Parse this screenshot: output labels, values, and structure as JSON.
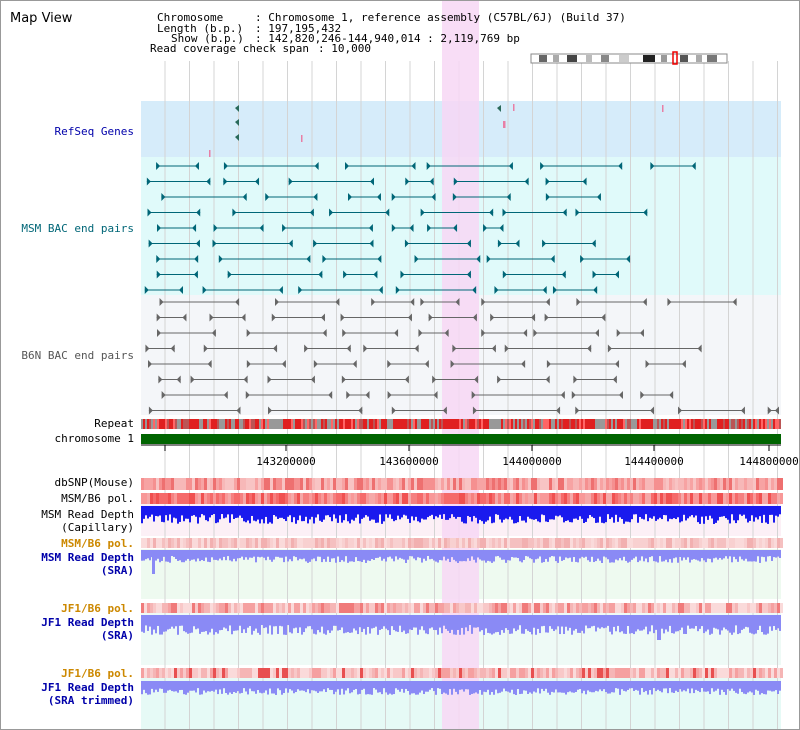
{
  "view_title": "Map View",
  "header": {
    "chromosome_key": "Chromosome",
    "chromosome_val": ": Chromosome 1, reference assembly (C57BL/6J) (Build 37)",
    "length_key": "Length (b.p.)",
    "length_val": ": 197,195,432",
    "show_key": "Show (b.p.)",
    "show_val": ": 142,820,246-144,940,014 : 2,119,769 bp",
    "coverage_key": "Read coverage check span",
    "coverage_val": ": 10,000"
  },
  "tracks": {
    "refseq": "RefSeq Genes",
    "msm_bac": "MSM BAC end pairs",
    "b6n_bac": "B6N BAC end pairs",
    "repeat": "Repeat",
    "chromosome": "chromosome 1",
    "dbsnp": "dbSNP(Mouse)",
    "msm_pol1": "MSM/B6 pol.",
    "msm_depth_cap_1": "MSM Read Depth",
    "msm_depth_cap_2": "(Capillary)",
    "msm_pol2": "MSM/B6 pol.",
    "msm_depth_sra_1": "MSM Read Depth",
    "msm_depth_sra_2": "(SRA)",
    "jf1_pol1": "JF1/B6 pol.",
    "jf1_depth_sra_1": "JF1 Read Depth",
    "jf1_depth_sra_2": "(SRA)",
    "jf1_pol2": "JF1/B6 pol.",
    "jf1_depth_trim_1": "JF1 Read Depth",
    "jf1_depth_trim_2": "(SRA trimmed)"
  },
  "axis": {
    "ticks": [
      "143200000",
      "143600000",
      "144000000",
      "144400000",
      "144800000"
    ]
  },
  "colors": {
    "refseq_bg": "#d6ecfa",
    "msm_bg": "#e0fafa",
    "b6n_bg": "#f4f6f9",
    "highlight": "#f7d7f4",
    "chromosome": "#006400",
    "msm_feature": "#006677",
    "b6n_feature": "#666666",
    "depth_blue": "#1a1aee",
    "depth_light": "#8a8af5"
  }
}
